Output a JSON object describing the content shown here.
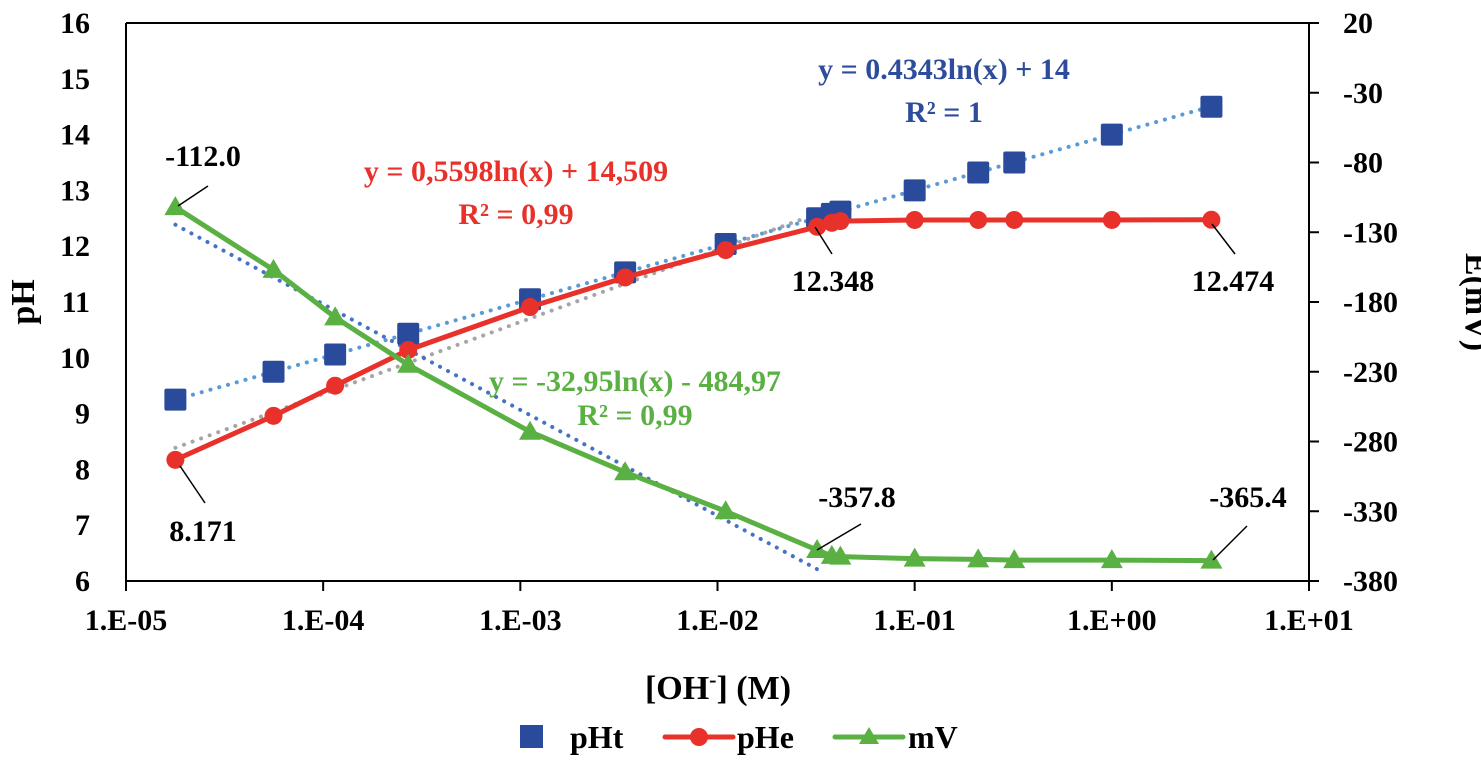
{
  "chart_data": {
    "type": "line",
    "title": "",
    "xlabel": "[OH-] (M)",
    "xlabel_parts": {
      "main": "[OH",
      "sup": "-",
      "rest": "] (M)"
    },
    "ylabel": "pH",
    "y2label": "E(mV)",
    "xscale": "log",
    "xlim": [
      1e-05,
      10
    ],
    "ylim": [
      6,
      16
    ],
    "y2lim": [
      -380,
      20
    ],
    "grid": false,
    "legend_position": "bottom",
    "x_ticks": [
      "1.E-05",
      "1.E-04",
      "1.E-03",
      "1.E-02",
      "1.E-01",
      "1.E+00",
      "1.E+01"
    ],
    "x_tick_values": [
      1e-05,
      0.0001,
      0.001,
      0.01,
      0.1,
      1,
      10
    ],
    "y_ticks": [
      "6",
      "7",
      "8",
      "9",
      "10",
      "11",
      "12",
      "13",
      "14",
      "15",
      "16"
    ],
    "y_tick_values": [
      6,
      7,
      8,
      9,
      10,
      11,
      12,
      13,
      14,
      15,
      16
    ],
    "y2_ticks": [
      "20",
      "-30",
      "-80",
      "-130",
      "-180",
      "-230",
      "-280",
      "-330",
      "-380"
    ],
    "y2_tick_values": [
      20,
      -30,
      -80,
      -130,
      -180,
      -230,
      -280,
      -330,
      -380
    ],
    "series": [
      {
        "name": "pHt",
        "axis": "left",
        "color": "#2a4b9b",
        "marker": "square",
        "line": false,
        "x": [
          1.78e-05,
          5.6e-05,
          0.000115,
          0.00027,
          0.00112,
          0.0034,
          0.011,
          0.032,
          0.038,
          0.042,
          0.1,
          0.21,
          0.32,
          1.0,
          3.2
        ],
        "values": [
          9.25,
          9.75,
          10.06,
          10.43,
          11.05,
          11.53,
          12.04,
          12.5,
          12.58,
          12.62,
          13.0,
          13.32,
          13.5,
          14.0,
          14.5
        ]
      },
      {
        "name": "pHe",
        "axis": "left",
        "color": "#e8312a",
        "marker": "circle",
        "line": true,
        "x": [
          1.78e-05,
          5.6e-05,
          0.000115,
          0.00027,
          0.00112,
          0.0034,
          0.011,
          0.032,
          0.038,
          0.042,
          0.1,
          0.21,
          0.32,
          1.0,
          3.2
        ],
        "values": [
          8.171,
          8.96,
          9.5,
          10.14,
          10.91,
          11.44,
          11.93,
          12.348,
          12.42,
          12.45,
          12.47,
          12.47,
          12.47,
          12.47,
          12.474
        ]
      },
      {
        "name": "mV",
        "axis": "right",
        "color": "#5ab043",
        "marker": "triangle",
        "line": true,
        "x": [
          1.78e-05,
          5.6e-05,
          0.000115,
          0.00027,
          0.00112,
          0.0034,
          0.011,
          0.032,
          0.038,
          0.042,
          0.1,
          0.21,
          0.32,
          1.0,
          3.2
        ],
        "values": [
          -112.0,
          -157,
          -191,
          -225,
          -273,
          -302,
          -330,
          -357.8,
          -362,
          -362.5,
          -364,
          -364.5,
          -365,
          -365,
          -365.4
        ]
      }
    ],
    "trendlines": [
      {
        "series": "pHt",
        "type": "log",
        "color": "#5b9bd5",
        "a": 0.4343,
        "b": 14,
        "axis": "left",
        "x_range": [
          1.78e-05,
          3.2
        ]
      },
      {
        "series": "pHe",
        "type": "log",
        "color": "#a5a5a5",
        "a": 0.5598,
        "b": 14.509,
        "axis": "left",
        "x_range": [
          1.78e-05,
          0.032
        ]
      },
      {
        "series": "mV",
        "type": "log",
        "color": "#4472c4",
        "a": -32.95,
        "b": -484.97,
        "axis": "right",
        "x_range": [
          1.78e-05,
          0.032
        ]
      }
    ],
    "equations": [
      {
        "line1": "y = 0.4343ln(x) + 14",
        "line2": "R² = 1",
        "color": "#2e4c9c"
      },
      {
        "line1": "y = 0,5598ln(x) + 14,509",
        "line2": "R² = 0,99",
        "color": "#e8312a"
      },
      {
        "line1": "y = -32,95ln(x) - 484,97",
        "line2": "R² = 0,99",
        "color": "#5ab043"
      }
    ],
    "annotations": [
      {
        "text": "-112.0",
        "series": "mV",
        "index": 0
      },
      {
        "text": "8.171",
        "series": "pHe",
        "index": 0
      },
      {
        "text": "12.348",
        "series": "pHe",
        "index": 7
      },
      {
        "text": "12.474",
        "series": "pHe",
        "index": 14
      },
      {
        "text": "-357.8",
        "series": "mV",
        "index": 7
      },
      {
        "text": "-365.4",
        "series": "mV",
        "index": 14
      }
    ],
    "legend": [
      {
        "label": "pHt",
        "marker": "square",
        "color": "#2a4b9b"
      },
      {
        "label": "pHe",
        "marker": "circle-line",
        "color": "#e8312a"
      },
      {
        "label": "mV",
        "marker": "triangle-line",
        "color": "#5ab043"
      }
    ]
  }
}
